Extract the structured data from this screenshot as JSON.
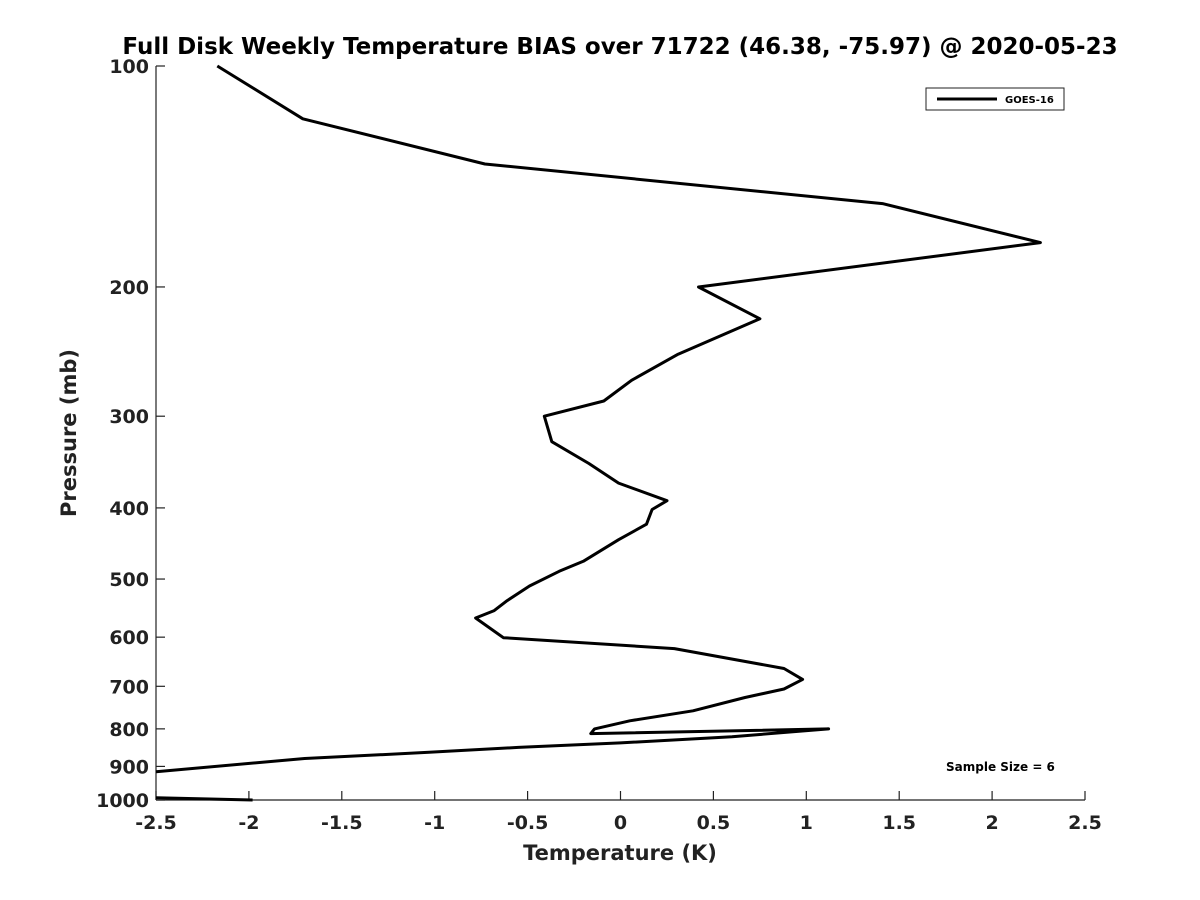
{
  "chart_data": {
    "type": "line",
    "title": "Full Disk Weekly Temperature BIAS over 71722 (46.38, -75.97) @ 2020-05-23",
    "xlabel": "Temperature (K)",
    "ylabel": "Pressure (mb)",
    "xlim": [
      -2.5,
      2.5
    ],
    "ylim": [
      1000,
      100
    ],
    "y_scale": "log",
    "y_inverted": true,
    "grid": false,
    "x_ticks": [
      -2.5,
      -2,
      -1.5,
      -1,
      -0.5,
      0,
      0.5,
      1,
      1.5,
      2,
      2.5
    ],
    "x_tick_labels": [
      "-2.5",
      "-2",
      "-1.5",
      "-1",
      "-0.5",
      "0",
      "0.5",
      "1",
      "1.5",
      "2",
      "2.5"
    ],
    "y_ticks": [
      100,
      200,
      300,
      400,
      500,
      600,
      700,
      800,
      900,
      1000
    ],
    "y_tick_labels": [
      "100",
      "200",
      "300",
      "400",
      "500",
      "600",
      "700",
      "800",
      "900",
      "1000"
    ],
    "legend": {
      "position": "top-right",
      "entries": [
        "GOES-16"
      ]
    },
    "annotation": "Sample Size = 6",
    "series": [
      {
        "name": "GOES-16",
        "color": "#000000",
        "points": [
          {
            "x": -2.17,
            "p": 100
          },
          {
            "x": -1.71,
            "p": 118
          },
          {
            "x": -0.73,
            "p": 136
          },
          {
            "x": 1.41,
            "p": 154
          },
          {
            "x": 2.26,
            "p": 174
          },
          {
            "x": 0.42,
            "p": 200
          },
          {
            "x": 0.75,
            "p": 221
          },
          {
            "x": 0.31,
            "p": 247
          },
          {
            "x": 0.06,
            "p": 268
          },
          {
            "x": -0.09,
            "p": 286
          },
          {
            "x": -0.41,
            "p": 300
          },
          {
            "x": -0.37,
            "p": 325
          },
          {
            "x": -0.17,
            "p": 348
          },
          {
            "x": -0.01,
            "p": 370
          },
          {
            "x": 0.25,
            "p": 391
          },
          {
            "x": 0.17,
            "p": 402
          },
          {
            "x": 0.14,
            "p": 421
          },
          {
            "x": -0.01,
            "p": 442
          },
          {
            "x": -0.2,
            "p": 473
          },
          {
            "x": -0.33,
            "p": 488
          },
          {
            "x": -0.49,
            "p": 511
          },
          {
            "x": -0.61,
            "p": 535
          },
          {
            "x": -0.68,
            "p": 552
          },
          {
            "x": -0.78,
            "p": 565
          },
          {
            "x": -0.63,
            "p": 601
          },
          {
            "x": 0.29,
            "p": 622
          },
          {
            "x": 0.88,
            "p": 662
          },
          {
            "x": 0.98,
            "p": 685
          },
          {
            "x": 0.88,
            "p": 706
          },
          {
            "x": 0.67,
            "p": 725
          },
          {
            "x": 0.39,
            "p": 756
          },
          {
            "x": 0.05,
            "p": 780
          },
          {
            "x": -0.14,
            "p": 800
          },
          {
            "x": -0.16,
            "p": 812
          },
          {
            "x": 1.12,
            "p": 800
          },
          {
            "x": 0.6,
            "p": 820
          },
          {
            "x": 0.0,
            "p": 836
          },
          {
            "x": -0.55,
            "p": 848
          },
          {
            "x": -1.03,
            "p": 861
          },
          {
            "x": -1.7,
            "p": 878
          },
          {
            "x": -2.5,
            "p": 915
          }
        ]
      },
      {
        "name": "",
        "color": "#000000",
        "points": [
          {
            "x": -2.5,
            "p": 993
          },
          {
            "x": -1.98,
            "p": 1000
          }
        ]
      }
    ]
  }
}
